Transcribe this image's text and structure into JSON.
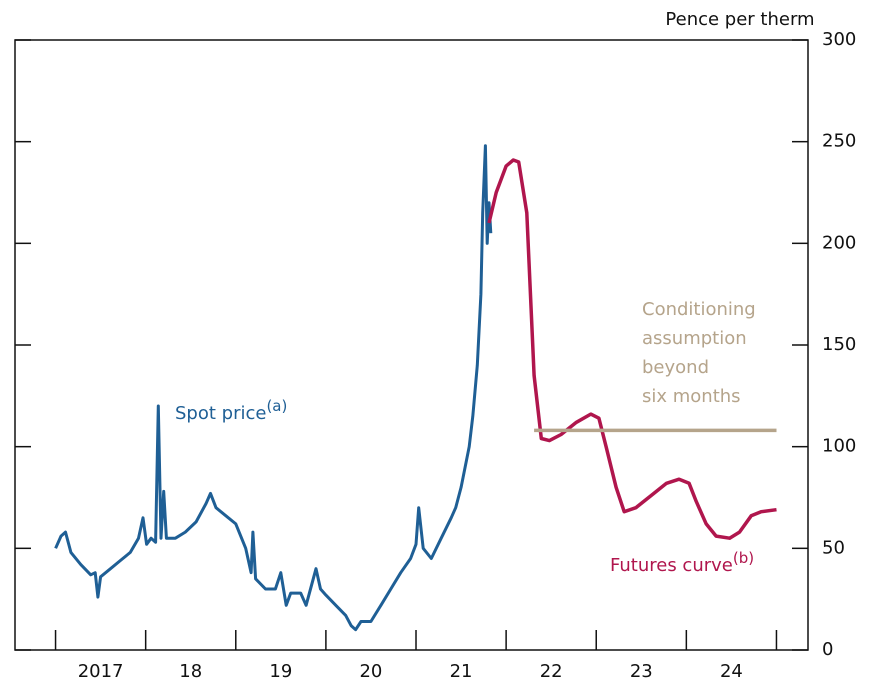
{
  "chart_data": {
    "type": "line",
    "unit_label": "Pence per therm",
    "xlim": [
      2016.55,
      2025.35
    ],
    "xtick_marks": [
      2017,
      2018,
      2019,
      2020,
      2021,
      2022,
      2023,
      2024,
      2025
    ],
    "xticks": [
      {
        "value": 2017.5,
        "label": "2017"
      },
      {
        "value": 2018.5,
        "label": "18"
      },
      {
        "value": 2019.5,
        "label": "19"
      },
      {
        "value": 2020.5,
        "label": "20"
      },
      {
        "value": 2021.5,
        "label": "21"
      },
      {
        "value": 2022.5,
        "label": "22"
      },
      {
        "value": 2023.5,
        "label": "23"
      },
      {
        "value": 2024.5,
        "label": "24"
      }
    ],
    "ylim": [
      0,
      300
    ],
    "yticks": [
      0,
      50,
      100,
      150,
      200,
      250,
      300
    ],
    "series": [
      {
        "name": "Spot price",
        "note": "(a)",
        "color": "#1f5f95",
        "x": [
          2017.0,
          2017.06,
          2017.11,
          2017.17,
          2017.28,
          2017.39,
          2017.44,
          2017.47,
          2017.5,
          2017.61,
          2017.72,
          2017.83,
          2017.92,
          2017.97,
          2018.01,
          2018.06,
          2018.11,
          2018.14,
          2018.17,
          2018.2,
          2018.23,
          2018.33,
          2018.44,
          2018.56,
          2018.67,
          2018.72,
          2018.78,
          2018.89,
          2019.0,
          2019.11,
          2019.17,
          2019.19,
          2019.22,
          2019.33,
          2019.44,
          2019.5,
          2019.56,
          2019.61,
          2019.72,
          2019.78,
          2019.89,
          2019.94,
          2020.0,
          2020.11,
          2020.22,
          2020.28,
          2020.33,
          2020.39,
          2020.5,
          2020.61,
          2020.72,
          2020.83,
          2020.94,
          2021.0,
          2021.03,
          2021.08,
          2021.17,
          2021.28,
          2021.39,
          2021.44,
          2021.5,
          2021.59,
          2021.63,
          2021.68,
          2021.72,
          2021.74,
          2021.77,
          2021.79,
          2021.81,
          2021.83
        ],
        "values": [
          50,
          56,
          58,
          48,
          42,
          37,
          38,
          26,
          36,
          40,
          44,
          48,
          55,
          65,
          52,
          55,
          53,
          120,
          55,
          78,
          55,
          55,
          58,
          63,
          72,
          77,
          70,
          66,
          62,
          50,
          38,
          58,
          35,
          30,
          30,
          38,
          22,
          28,
          28,
          22,
          40,
          30,
          27,
          22,
          17,
          12,
          10,
          14,
          14,
          22,
          30,
          38,
          45,
          52,
          70,
          50,
          45,
          55,
          65,
          70,
          80,
          100,
          115,
          140,
          175,
          215,
          248,
          200,
          220,
          205
        ]
      },
      {
        "name": "Futures curve",
        "note": "(b)",
        "color": "#b0164d",
        "x": [
          2021.81,
          2021.89,
          2022.0,
          2022.08,
          2022.14,
          2022.23,
          2022.31,
          2022.39,
          2022.48,
          2022.61,
          2022.78,
          2022.94,
          2023.03,
          2023.11,
          2023.22,
          2023.31,
          2023.44,
          2023.61,
          2023.78,
          2023.92,
          2024.03,
          2024.11,
          2024.22,
          2024.33,
          2024.48,
          2024.59,
          2024.72,
          2024.83,
          2025.0
        ],
        "values": [
          210,
          225,
          238,
          241,
          240,
          215,
          135,
          104,
          103,
          106,
          112,
          116,
          114,
          100,
          80,
          68,
          70,
          76,
          82,
          84,
          82,
          73,
          62,
          56,
          55,
          58,
          66,
          68,
          69
        ]
      },
      {
        "name": [
          "Conditioning",
          "assumption",
          "beyond",
          "six months"
        ],
        "color": "#b5a48b",
        "x": [
          2022.31,
          2025.0
        ],
        "values": [
          108,
          108
        ]
      }
    ]
  }
}
